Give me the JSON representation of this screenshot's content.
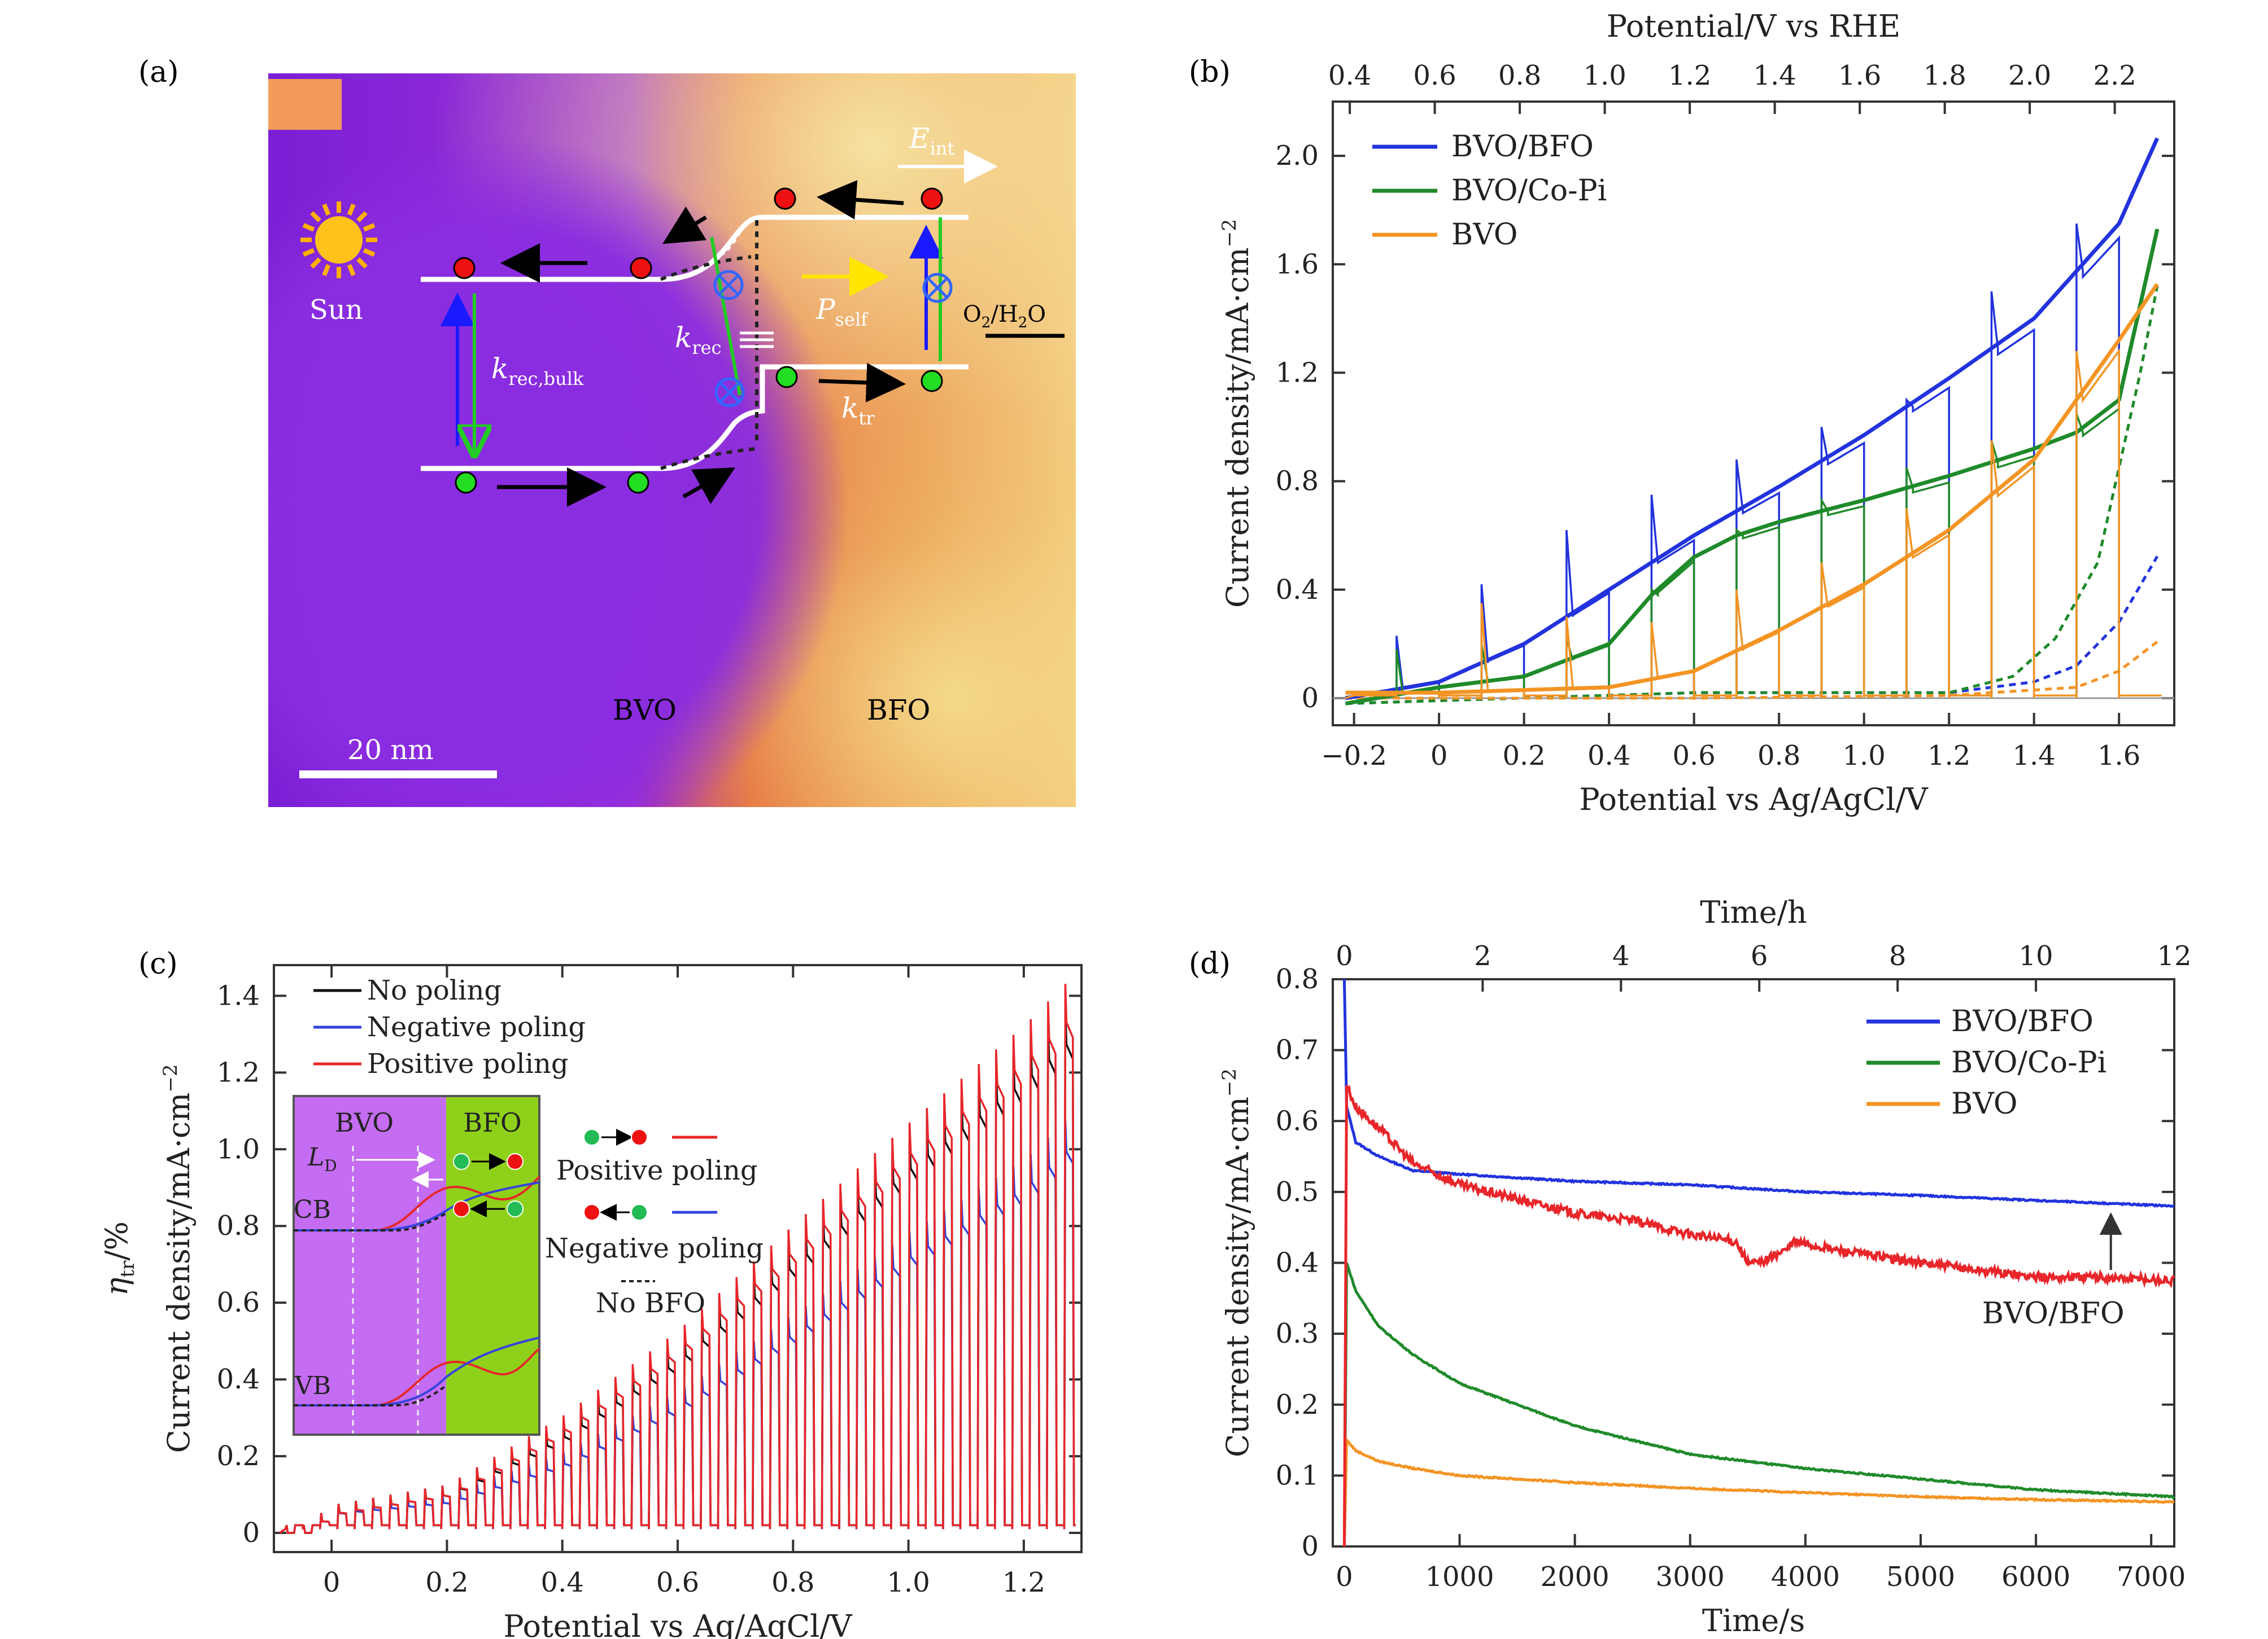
{
  "panel_labels": {
    "a": "(a)",
    "b": "(b)",
    "c": "(c)",
    "d": "(d)"
  },
  "panel_a": {
    "scale_bar": "20 nm",
    "label_bvo": "BVO",
    "label_bfo": "BFO",
    "label_sun": "Sun",
    "label_eint": "E",
    "label_eint_sub": "int",
    "label_pself": "P",
    "label_pself_sub": "self",
    "label_krec_bulk": "k",
    "label_krec_bulk_sub": "rec,bulk",
    "label_krec": "k",
    "label_krec_sub": "rec",
    "label_ktr": "k",
    "label_ktr_sub": "tr",
    "label_o2h2o": "O",
    "label_o2h2o_sub1": "2",
    "label_o2h2o_mid": "/H",
    "label_o2h2o_sub2": "2",
    "label_o2h2o_end": "O",
    "colors": {
      "bvo": "#8a2ce0",
      "bfo": "#e86a2a",
      "bg_light": "#f4d98a"
    }
  },
  "chart_data": [
    {
      "id": "b",
      "type": "line",
      "xlabel": "Potential vs Ag/AgCl/V",
      "x2label": "Potential/V vs RHE",
      "ylabel": "Current density/mA·cm",
      "ylabel_sup": "−2",
      "xlim": [
        -0.25,
        1.73
      ],
      "ylim": [
        -0.1,
        2.2
      ],
      "xticks": [
        -0.2,
        0,
        0.2,
        0.4,
        0.6,
        0.8,
        1.0,
        1.2,
        1.4,
        1.6
      ],
      "xtick_labels": [
        "−0.2",
        "0",
        "0.2",
        "0.4",
        "0.6",
        "0.8",
        "1.0",
        "1.2",
        "1.4",
        "1.6"
      ],
      "x2ticks": [
        0.4,
        0.6,
        0.8,
        1.0,
        1.2,
        1.4,
        1.6,
        1.8,
        2.0,
        2.2
      ],
      "x2tick_labels": [
        "0.4",
        "0.6",
        "0.8",
        "1.0",
        "1.2",
        "1.4",
        "1.6",
        "1.8",
        "2.0",
        "2.2"
      ],
      "x2_offset": 0.61,
      "yticks": [
        0,
        0.4,
        0.8,
        1.2,
        1.6,
        2.0
      ],
      "ytick_labels": [
        "0",
        "0.4",
        "0.8",
        "1.2",
        "1.6",
        "2.0"
      ],
      "legend_position": "top-left",
      "series": [
        {
          "name": "BVO/BFO",
          "color": "#2233dd",
          "x": [
            -0.22,
            0,
            0.2,
            0.4,
            0.6,
            0.8,
            1.0,
            1.2,
            1.4,
            1.6,
            1.7
          ],
          "y": [
            0.0,
            0.06,
            0.2,
            0.4,
            0.6,
            0.78,
            0.97,
            1.18,
            1.4,
            1.75,
            2.1
          ],
          "spike_x": [
            -0.1,
            0.1,
            0.3,
            0.5,
            0.7,
            0.9,
            1.1,
            1.3,
            1.5
          ],
          "spike_y": [
            0.23,
            0.42,
            0.62,
            0.75,
            0.88,
            1.0,
            1.1,
            1.5,
            1.75
          ]
        },
        {
          "name": "BVO/Co-Pi",
          "color": "#1f8a2a",
          "x": [
            -0.22,
            0,
            0.2,
            0.4,
            0.5,
            0.6,
            0.7,
            0.8,
            1.0,
            1.2,
            1.4,
            1.5,
            1.6,
            1.7
          ],
          "y": [
            -0.02,
            0.04,
            0.08,
            0.2,
            0.38,
            0.52,
            0.6,
            0.65,
            0.73,
            0.82,
            0.92,
            0.98,
            1.1,
            1.8
          ],
          "spike_x": [
            -0.1,
            0.1,
            0.3,
            0.5,
            0.7,
            0.9,
            1.1,
            1.3,
            1.5
          ],
          "spike_y": [
            0.18,
            0.2,
            0.22,
            0.4,
            0.62,
            0.73,
            0.85,
            0.95,
            1.05
          ]
        },
        {
          "name": "BVO",
          "color": "#f39424",
          "x": [
            -0.22,
            0,
            0.4,
            0.6,
            0.8,
            1.0,
            1.2,
            1.4,
            1.6,
            1.7
          ],
          "y": [
            0.02,
            0.02,
            0.04,
            0.1,
            0.25,
            0.42,
            0.62,
            0.88,
            1.32,
            1.55
          ],
          "spike_x": [
            0.1,
            0.3,
            0.5,
            0.7,
            0.9,
            1.1,
            1.3,
            1.5
          ],
          "spike_y": [
            0.35,
            0.3,
            0.28,
            0.4,
            0.5,
            0.7,
            0.95,
            1.28
          ]
        }
      ],
      "dark_series": [
        {
          "color": "#2233dd",
          "x": [
            -0.22,
            0.6,
            1.2,
            1.4,
            1.5,
            1.6,
            1.7
          ],
          "y": [
            -0.02,
            0.02,
            0.02,
            0.06,
            0.12,
            0.28,
            0.55
          ]
        },
        {
          "color": "#1f8a2a",
          "x": [
            -0.22,
            0.6,
            1.2,
            1.35,
            1.45,
            1.55,
            1.65,
            1.7
          ],
          "y": [
            -0.02,
            0.02,
            0.02,
            0.08,
            0.22,
            0.5,
            1.2,
            1.6
          ]
        },
        {
          "color": "#f39424",
          "x": [
            -0.22,
            0.6,
            1.2,
            1.5,
            1.6,
            1.7
          ],
          "y": [
            0.0,
            0.0,
            0.01,
            0.04,
            0.1,
            0.22
          ]
        }
      ]
    },
    {
      "id": "c",
      "type": "line",
      "xlabel": "Potential vs Ag/AgCl/V",
      "ylabel": "Current density/mA·cm",
      "ylabel_sup": "−2",
      "ylabel2": "η",
      "ylabel2_sub": "tr",
      "ylabel2_end": "/%",
      "xlim": [
        -0.1,
        1.3
      ],
      "ylim": [
        -0.05,
        1.48
      ],
      "xticks": [
        0,
        0.2,
        0.4,
        0.6,
        0.8,
        1.0,
        1.2
      ],
      "xtick_labels": [
        "0",
        "0.2",
        "0.4",
        "0.6",
        "0.8",
        "1.0",
        "1.2"
      ],
      "yticks": [
        0,
        0.2,
        0.4,
        0.6,
        0.8,
        1.0,
        1.2,
        1.4
      ],
      "ytick_labels": [
        "0",
        "0.2",
        "0.4",
        "0.6",
        "0.8",
        "1.0",
        "1.2",
        "1.4"
      ],
      "legend_position": "top-left",
      "series": [
        {
          "name": "No poling",
          "color": "#111111",
          "x": [
            -0.05,
            0,
            0.2,
            0.4,
            0.6,
            0.8,
            1.0,
            1.2,
            1.29
          ],
          "y": [
            0.0,
            0.05,
            0.1,
            0.25,
            0.45,
            0.7,
            0.95,
            1.18,
            1.3
          ]
        },
        {
          "name": "Negative poling",
          "color": "#3344dd",
          "x": [
            -0.05,
            0,
            0.2,
            0.4,
            0.6,
            0.8,
            1.0,
            1.2,
            1.29
          ],
          "y": [
            0.0,
            0.05,
            0.08,
            0.18,
            0.33,
            0.52,
            0.72,
            0.9,
            1.02
          ]
        },
        {
          "name": "Positive poling",
          "color": "#e8262a",
          "x": [
            -0.05,
            0,
            0.2,
            0.4,
            0.6,
            0.8,
            1.0,
            1.2,
            1.29
          ],
          "y": [
            0.0,
            0.05,
            0.1,
            0.27,
            0.48,
            0.74,
            0.99,
            1.23,
            1.36
          ]
        }
      ],
      "inset": {
        "label_bvo": "BVO",
        "label_bfo": "BFO",
        "label_ld": "L",
        "label_ld_sub": "D",
        "label_cb": "CB",
        "label_vb": "VB",
        "legend_positive": "Positive poling",
        "legend_negative": "Negative poling",
        "legend_nobfo": "No BFO",
        "colors": {
          "bvo": "#c46cf2",
          "bfo": "#8fd11a"
        }
      }
    },
    {
      "id": "d",
      "type": "line",
      "xlabel": "Time/s",
      "x2label": "Time/h",
      "ylabel": "Current density/mA·cm",
      "ylabel_sup": "−2",
      "xlim": [
        -100,
        7200
      ],
      "ylim": [
        0,
        0.8
      ],
      "xticks": [
        0,
        1000,
        2000,
        3000,
        4000,
        5000,
        6000,
        7000
      ],
      "xtick_labels": [
        "0",
        "1000",
        "2000",
        "3000",
        "4000",
        "5000",
        "6000",
        "7000"
      ],
      "x2ticks": [
        0,
        2,
        4,
        6,
        8,
        10,
        12
      ],
      "x2tick_labels": [
        "0",
        "2",
        "4",
        "6",
        "8",
        "10",
        "12"
      ],
      "x2_scale": 600,
      "yticks": [
        0,
        0.1,
        0.2,
        0.3,
        0.4,
        0.5,
        0.6,
        0.7,
        0.8
      ],
      "ytick_labels": [
        "0",
        "0.1",
        "0.2",
        "0.3",
        "0.4",
        "0.5",
        "0.6",
        "0.7",
        "0.8"
      ],
      "legend_position": "top-right",
      "annotation": "BVO/BFO",
      "series": [
        {
          "name": "BVO/BFO",
          "color": "#2233dd",
          "x": [
            0,
            20,
            100,
            300,
            600,
            1000,
            2000,
            3000,
            4000,
            5000,
            6000,
            7200
          ],
          "y": [
            0.8,
            0.62,
            0.57,
            0.55,
            0.53,
            0.525,
            0.515,
            0.51,
            0.5,
            0.495,
            0.488,
            0.48
          ]
        },
        {
          "name": "BVO/Co-Pi",
          "color": "#1f8a2a",
          "x": [
            0,
            20,
            100,
            300,
            600,
            1000,
            2000,
            3000,
            4000,
            5000,
            6000,
            7200
          ],
          "y": [
            0.0,
            0.4,
            0.36,
            0.31,
            0.27,
            0.23,
            0.17,
            0.13,
            0.11,
            0.095,
            0.08,
            0.07
          ]
        },
        {
          "name": "BVO",
          "color": "#f39424",
          "x": [
            0,
            20,
            100,
            300,
            600,
            1000,
            2000,
            3000,
            4000,
            5000,
            6000,
            7200
          ],
          "y": [
            0.0,
            0.15,
            0.135,
            0.12,
            0.11,
            0.1,
            0.09,
            0.082,
            0.076,
            0.07,
            0.066,
            0.063
          ]
        },
        {
          "color": "#e8262a",
          "x": [
            0,
            20,
            100,
            300,
            600,
            1000,
            1500,
            2000,
            2500,
            3000,
            3400,
            3500,
            3600,
            3850,
            3900,
            4200,
            5000,
            6000,
            6500,
            7200
          ],
          "y": [
            0.0,
            0.65,
            0.62,
            0.59,
            0.54,
            0.51,
            0.49,
            0.47,
            0.46,
            0.44,
            0.43,
            0.4,
            0.4,
            0.42,
            0.43,
            0.42,
            0.4,
            0.38,
            0.38,
            0.375
          ]
        }
      ]
    }
  ]
}
